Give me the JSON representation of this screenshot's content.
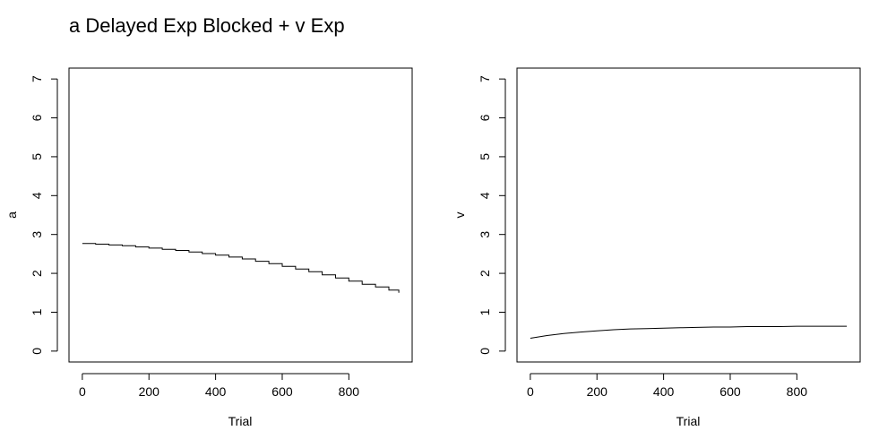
{
  "title": "a Delayed Exp Blocked + v Exp",
  "chart_data": [
    {
      "type": "line",
      "step": true,
      "xlabel": "Trial",
      "ylabel": "a",
      "xlim": [
        -40,
        990
      ],
      "ylim": [
        -0.28,
        7.28
      ],
      "xticks": [
        0,
        200,
        400,
        600,
        800
      ],
      "yticks": [
        0,
        1,
        2,
        3,
        4,
        5,
        6,
        7
      ],
      "grid": false,
      "series": [
        {
          "x": [
            0,
            40,
            80,
            120,
            160,
            200,
            240,
            280,
            320,
            360,
            400,
            440,
            480,
            520,
            560,
            600,
            640,
            680,
            720,
            760,
            800,
            840,
            880,
            920,
            950
          ],
          "values": [
            2.77,
            2.75,
            2.73,
            2.71,
            2.68,
            2.65,
            2.62,
            2.59,
            2.55,
            2.51,
            2.47,
            2.42,
            2.37,
            2.31,
            2.25,
            2.18,
            2.11,
            2.04,
            1.96,
            1.88,
            1.8,
            1.72,
            1.65,
            1.57,
            1.5
          ]
        }
      ]
    },
    {
      "type": "line",
      "xlabel": "Trial",
      "ylabel": "v",
      "xlim": [
        -40,
        990
      ],
      "ylim": [
        -0.28,
        7.28
      ],
      "xticks": [
        0,
        200,
        400,
        600,
        800
      ],
      "yticks": [
        0,
        1,
        2,
        3,
        4,
        5,
        6,
        7
      ],
      "grid": false,
      "series": [
        {
          "x": [
            0,
            50,
            100,
            150,
            200,
            250,
            300,
            350,
            400,
            450,
            500,
            550,
            600,
            650,
            700,
            750,
            800,
            850,
            900,
            950
          ],
          "values": [
            0.33,
            0.4,
            0.45,
            0.49,
            0.52,
            0.55,
            0.57,
            0.58,
            0.59,
            0.6,
            0.61,
            0.62,
            0.62,
            0.63,
            0.63,
            0.63,
            0.64,
            0.64,
            0.64,
            0.64
          ]
        }
      ]
    }
  ]
}
